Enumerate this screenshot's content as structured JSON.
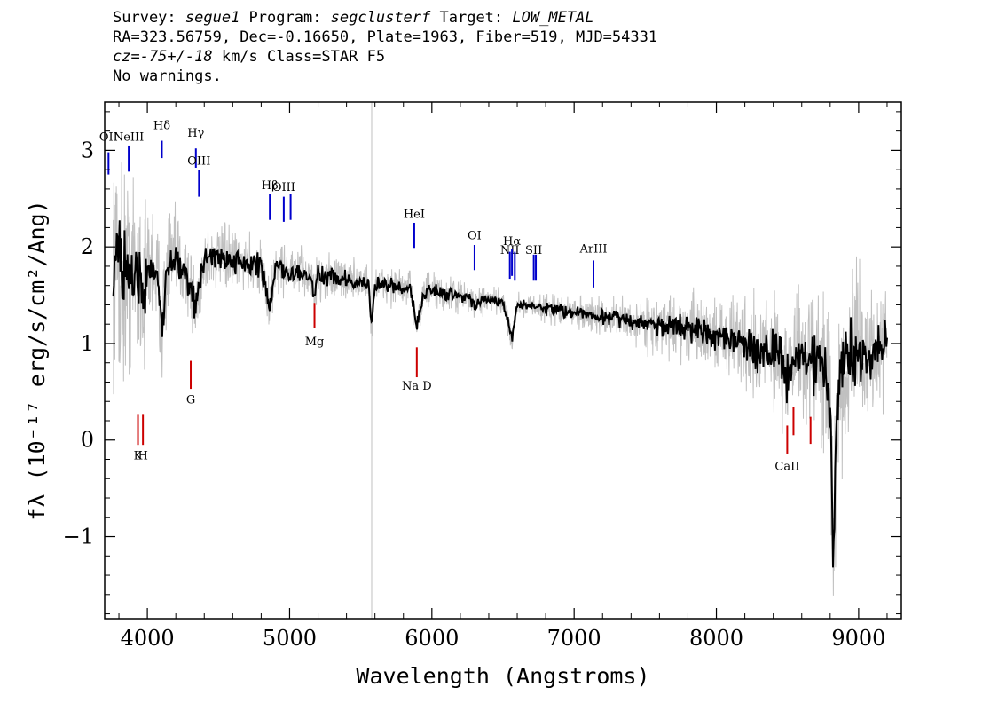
{
  "header": {
    "survey_label": "Survey: ",
    "survey": "segue1",
    "program_label": " Program: ",
    "program": "segclusterf",
    "target_label": " Target: ",
    "target": "LOW_METAL",
    "line2": "RA=323.56759, Dec=-0.16650, Plate=1963, Fiber=519, MJD=54331",
    "cz": "cz=-75+/-18",
    "line3_rest": " km/s Class=STAR F5",
    "line4": "No warnings."
  },
  "colors": {
    "flux": "#000000",
    "flux_raw": "#c0c0c0",
    "emission": "#0000cc",
    "absorption": "#cc0000",
    "axes": "#000000"
  },
  "chart_data": {
    "type": "line",
    "xlabel": "Wavelength (Angstroms)",
    "ylabel": "fλ (10⁻¹⁷ erg/s/cm²/Ang)",
    "xlim": [
      3700,
      9300
    ],
    "ylim": [
      -1.85,
      3.5
    ],
    "x_ticks": [
      4000,
      5000,
      6000,
      7000,
      8000,
      9000
    ],
    "y_ticks": [
      -1,
      0,
      1,
      2,
      3
    ],
    "grid": false,
    "series": [
      {
        "role": "smoothed flux (black)",
        "x": [
          3760,
          3800,
          3850,
          3900,
          3950,
          3970,
          4000,
          4050,
          4101,
          4150,
          4200,
          4250,
          4300,
          4340,
          4400,
          4450,
          4500,
          4550,
          4600,
          4650,
          4700,
          4750,
          4800,
          4861,
          4900,
          4950,
          5000,
          5050,
          5100,
          5150,
          5175,
          5200,
          5250,
          5300,
          5350,
          5400,
          5450,
          5500,
          5550,
          5577,
          5600,
          5650,
          5700,
          5750,
          5800,
          5850,
          5893,
          5950,
          6000,
          6050,
          6100,
          6150,
          6200,
          6250,
          6300,
          6350,
          6400,
          6450,
          6500,
          6563,
          6600,
          6650,
          6700,
          6750,
          6800,
          6850,
          6900,
          6950,
          7000,
          7050,
          7100,
          7150,
          7200,
          7250,
          7300,
          7350,
          7400,
          7450,
          7500,
          7550,
          7600,
          7650,
          7700,
          7750,
          7800,
          7850,
          7900,
          7950,
          8000,
          8050,
          8100,
          8150,
          8200,
          8250,
          8300,
          8350,
          8400,
          8450,
          8500,
          8542,
          8600,
          8662,
          8700,
          8750,
          8800,
          8820,
          8850,
          8900,
          8950,
          9000,
          9050,
          9100,
          9150,
          9200
        ],
        "y": [
          1.9,
          1.75,
          1.7,
          1.75,
          1.72,
          1.45,
          1.78,
          1.85,
          1.25,
          1.85,
          1.85,
          1.82,
          1.6,
          1.35,
          1.85,
          1.9,
          1.88,
          1.87,
          1.85,
          1.85,
          1.83,
          1.82,
          1.8,
          1.35,
          1.8,
          1.78,
          1.75,
          1.74,
          1.72,
          1.7,
          1.5,
          1.7,
          1.7,
          1.68,
          1.67,
          1.66,
          1.65,
          1.64,
          1.63,
          1.2,
          1.62,
          1.6,
          1.6,
          1.58,
          1.57,
          1.56,
          1.2,
          1.55,
          1.53,
          1.52,
          1.5,
          1.5,
          1.48,
          1.47,
          1.4,
          1.45,
          1.44,
          1.43,
          1.42,
          1.05,
          1.4,
          1.4,
          1.39,
          1.38,
          1.36,
          1.35,
          1.34,
          1.33,
          1.32,
          1.31,
          1.3,
          1.28,
          1.27,
          1.26,
          1.25,
          1.24,
          1.23,
          1.22,
          1.21,
          1.2,
          1.15,
          1.18,
          1.17,
          1.16,
          1.15,
          1.13,
          1.12,
          1.12,
          1.1,
          1.08,
          1.07,
          1.05,
          1.03,
          1.02,
          0.85,
          1.0,
          0.95,
          0.85,
          0.65,
          0.8,
          0.9,
          0.75,
          0.85,
          0.85,
          0.3,
          -1.25,
          0.4,
          0.8,
          0.95,
          0.9,
          0.85,
          0.9,
          0.95,
          1.0
        ]
      },
      {
        "role": "raw flux (gray)",
        "x": [
          3760,
          3800,
          3850,
          3900,
          3950,
          3970,
          4000,
          4050,
          4101,
          4150,
          4200,
          4250,
          4300,
          4340,
          4400,
          4450,
          4500,
          4550,
          4600,
          4650,
          4700,
          4750,
          4800,
          4861,
          4900,
          4950,
          5000,
          5050,
          5100,
          5150,
          5175,
          5200,
          5250,
          5300,
          5350,
          5400,
          5450,
          5500,
          5550,
          5577,
          5600,
          5650,
          5700,
          5750,
          5800,
          5850,
          5893,
          5950,
          6000,
          6050,
          6100,
          6150,
          6200,
          6250,
          6300,
          6350,
          6400,
          6450,
          6500,
          6563,
          6600,
          6650,
          6700,
          6750,
          6800,
          6850,
          6900,
          6950,
          7000,
          7050,
          7100,
          7150,
          7200,
          7250,
          7300,
          7350,
          7400,
          7450,
          7500,
          7550,
          7600,
          7650,
          7700,
          7750,
          7800,
          7850,
          7900,
          7950,
          8000,
          8050,
          8100,
          8150,
          8200,
          8250,
          8300,
          8350,
          8400,
          8450,
          8500,
          8542,
          8600,
          8662,
          8700,
          8750,
          8800,
          8820,
          8850,
          8900,
          8950,
          9000,
          9050,
          9100,
          9150,
          9200
        ],
        "y": [
          1.9,
          1.75,
          1.7,
          1.75,
          1.72,
          1.45,
          1.78,
          1.85,
          1.25,
          1.85,
          1.85,
          1.82,
          1.6,
          1.35,
          1.85,
          1.9,
          1.88,
          1.87,
          1.85,
          1.85,
          1.83,
          1.82,
          1.8,
          1.35,
          1.8,
          1.78,
          1.75,
          1.74,
          1.72,
          1.7,
          1.5,
          1.7,
          1.7,
          1.68,
          1.67,
          1.66,
          1.65,
          1.64,
          1.63,
          1.2,
          1.62,
          1.6,
          1.6,
          1.58,
          1.57,
          1.56,
          1.2,
          1.55,
          1.53,
          1.52,
          1.5,
          1.5,
          1.48,
          1.47,
          1.4,
          1.45,
          1.44,
          1.43,
          1.42,
          1.05,
          1.4,
          1.4,
          1.39,
          1.38,
          1.36,
          1.35,
          1.34,
          1.33,
          1.32,
          1.31,
          1.3,
          1.28,
          1.27,
          1.26,
          1.25,
          1.24,
          1.23,
          1.22,
          1.21,
          1.2,
          1.15,
          1.18,
          1.17,
          1.16,
          1.15,
          1.13,
          1.12,
          1.12,
          1.1,
          1.08,
          1.07,
          1.05,
          1.03,
          1.02,
          0.85,
          1.0,
          0.95,
          0.85,
          0.65,
          0.8,
          0.9,
          0.75,
          0.85,
          0.85,
          0.3,
          -1.25,
          0.4,
          0.8,
          0.95,
          0.9,
          0.85,
          0.9,
          0.95,
          1.0
        ],
        "spread": [
          1.5,
          1.8,
          1.6,
          1.4,
          1.3,
          1.2,
          1.0,
          0.9,
          0.9,
          0.8,
          0.7,
          0.6,
          0.6,
          0.6,
          0.5,
          0.5,
          0.45,
          0.45,
          0.45,
          0.4,
          0.4,
          0.4,
          0.4,
          0.4,
          0.4,
          0.38,
          0.36,
          0.36,
          0.35,
          0.35,
          0.35,
          0.34,
          0.33,
          0.33,
          0.32,
          0.32,
          0.32,
          0.31,
          0.31,
          0.3,
          0.3,
          0.3,
          0.3,
          0.3,
          0.3,
          0.3,
          0.3,
          0.3,
          0.28,
          0.26,
          0.25,
          0.25,
          0.24,
          0.22,
          0.22,
          0.2,
          0.2,
          0.2,
          0.2,
          0.2,
          0.18,
          0.18,
          0.18,
          0.18,
          0.2,
          0.22,
          0.22,
          0.22,
          0.22,
          0.24,
          0.24,
          0.25,
          0.26,
          0.28,
          0.28,
          0.3,
          0.32,
          0.34,
          0.36,
          0.38,
          0.4,
          0.42,
          0.44,
          0.46,
          0.48,
          0.5,
          0.52,
          0.54,
          0.56,
          0.58,
          0.6,
          0.62,
          0.66,
          0.7,
          0.75,
          0.8,
          0.85,
          0.9,
          0.95,
          1.0,
          1.05,
          1.1,
          1.1,
          1.1,
          1.2,
          1.3,
          1.3,
          1.3,
          1.2,
          1.1,
          1.0,
          0.9,
          0.9,
          0.9
        ]
      }
    ],
    "emission_lines": [
      {
        "label": "OII",
        "x": 3727,
        "y_top": 2.98,
        "y_bottom": 2.75,
        "label_y": 3.1
      },
      {
        "label": "NeIII",
        "x": 3869,
        "y_top": 3.05,
        "y_bottom": 2.78,
        "label_y": 3.1
      },
      {
        "label": "Hδ",
        "x": 4102,
        "y_top": 3.1,
        "y_bottom": 2.92,
        "label_y": 3.22
      },
      {
        "label": "Hγ",
        "x": 4341,
        "y_top": 3.02,
        "y_bottom": 2.82,
        "label_y": 3.14
      },
      {
        "label": "OIII",
        "x": 4363,
        "y_top": 2.8,
        "y_bottom": 2.52,
        "label_y": 2.85
      },
      {
        "label": "Hβ",
        "x": 4861,
        "y_top": 2.55,
        "y_bottom": 2.28,
        "label_y": 2.6
      },
      {
        "label": "OIII",
        "x": 4959,
        "y_top": 2.52,
        "y_bottom": 2.26,
        "label_y": 2.58
      },
      {
        "label": "OIII",
        "x": 5007,
        "y_top": 2.55,
        "y_bottom": 2.28,
        "label_y": 2.58
      },
      {
        "label": "HeI",
        "x": 5876,
        "y_top": 2.25,
        "y_bottom": 1.99,
        "label_y": 2.3
      },
      {
        "label": "OI",
        "x": 6300,
        "y_top": 2.02,
        "y_bottom": 1.76,
        "label_y": 2.08
      },
      {
        "label": "NII",
        "x": 6548,
        "y_top": 1.95,
        "y_bottom": 1.67,
        "label_y": 1.93
      },
      {
        "label": "Hα",
        "x": 6563,
        "y_top": 1.98,
        "y_bottom": 1.7,
        "label_y": 2.02
      },
      {
        "label": "NII",
        "x": 6583,
        "y_top": 1.95,
        "y_bottom": 1.65,
        "label_y": 1.93
      },
      {
        "label": "SII",
        "x": 6716,
        "y_top": 1.92,
        "y_bottom": 1.65,
        "label_y": 1.93
      },
      {
        "label": "SII",
        "x": 6731,
        "y_top": 1.92,
        "y_bottom": 1.65,
        "label_y": 1.93
      },
      {
        "label": "ArIII",
        "x": 7136,
        "y_top": 1.86,
        "y_bottom": 1.58,
        "label_y": 1.94
      }
    ],
    "absorption_lines": [
      {
        "label": "K",
        "x": 3934,
        "y_top": 0.27,
        "y_bottom": -0.05,
        "label_y": -0.2
      },
      {
        "label": "H",
        "x": 3969,
        "y_top": 0.27,
        "y_bottom": -0.05,
        "label_y": -0.2
      },
      {
        "label": "G",
        "x": 4305,
        "y_top": 0.82,
        "y_bottom": 0.53,
        "label_y": 0.38
      },
      {
        "label": "Mg",
        "x": 5175,
        "y_top": 1.42,
        "y_bottom": 1.16,
        "label_y": 0.98
      },
      {
        "label": "Na D",
        "x": 5894,
        "y_top": 0.96,
        "y_bottom": 0.65,
        "label_y": 0.52
      },
      {
        "label": "CaII",
        "x": 8498,
        "y_top": 0.15,
        "y_bottom": -0.14,
        "label_y": -0.31
      },
      {
        "label": "CaII",
        "x": 8542,
        "y_top": 0.34,
        "y_bottom": 0.05,
        "label_y": -0.31
      },
      {
        "label": "CaII",
        "x": 8662,
        "y_top": 0.24,
        "y_bottom": -0.04,
        "label_y": -0.31
      }
    ],
    "reference_vline_x": 5577
  }
}
